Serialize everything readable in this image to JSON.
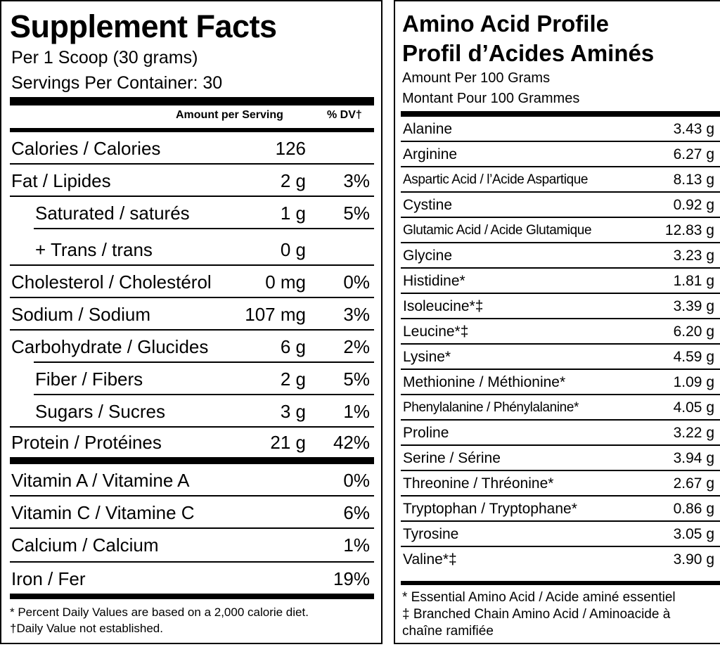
{
  "supplement": {
    "title": "Supplement Facts",
    "serving": "Per 1 Scoop (30 grams)",
    "servings_per_container": "Servings Per Container: 30",
    "col_amount": "Amount per Serving",
    "col_dv": "% DV†",
    "rows": [
      {
        "name": "Calories / Calories",
        "amount": "126",
        "dv": ""
      },
      {
        "name": "Fat / Lipides",
        "amount": "2 g",
        "dv": "3%"
      },
      {
        "name": "Saturated / saturés",
        "amount": "1 g",
        "dv": "5%"
      },
      {
        "name": "+ Trans / trans",
        "amount": "0 g",
        "dv": ""
      },
      {
        "name": "Cholesterol / Cholestérol",
        "amount": "0 mg",
        "dv": "0%"
      },
      {
        "name": "Sodium / Sodium",
        "amount": "107 mg",
        "dv": "3%"
      },
      {
        "name": "Carbohydrate / Glucides",
        "amount": "6 g",
        "dv": "2%"
      },
      {
        "name": "Fiber / Fibers",
        "amount": "2 g",
        "dv": "5%"
      },
      {
        "name": "Sugars / Sucres",
        "amount": "3 g",
        "dv": "1%"
      },
      {
        "name": "Protein / Protéines",
        "amount": "21 g",
        "dv": "42%"
      }
    ],
    "vitamins": [
      {
        "name": "Vitamin A / Vitamine A",
        "dv": "0%"
      },
      {
        "name": "Vitamin C / Vitamine C",
        "dv": "6%"
      },
      {
        "name": "Calcium / Calcium",
        "dv": "1%"
      },
      {
        "name": "Iron / Fer",
        "dv": "19%"
      }
    ],
    "footnote_1": "* Percent Daily Values are based on a 2,000 calorie diet.",
    "footnote_2": "†Daily Value not established."
  },
  "amino": {
    "title_en": "Amino Acid Profile",
    "title_fr": "Profil d’Acides Aminés",
    "amount_en": "Amount Per 100 Grams",
    "amount_fr": "Montant Pour 100 Grammes",
    "rows": [
      {
        "name": "Alanine",
        "value": "3.43 g"
      },
      {
        "name": "Arginine",
        "value": "6.27 g"
      },
      {
        "name": "Aspartic Acid / l’Acide Aspartique",
        "value": "8.13 g"
      },
      {
        "name": "Cystine",
        "value": "0.92 g"
      },
      {
        "name": "Glutamic Acid / Acide Glutamique",
        "value": "12.83 g"
      },
      {
        "name": "Glycine",
        "value": "3.23 g"
      },
      {
        "name": "Histidine*",
        "value": "1.81 g"
      },
      {
        "name": "Isoleucine*‡",
        "value": "3.39 g"
      },
      {
        "name": "Leucine*‡",
        "value": "6.20 g"
      },
      {
        "name": "Lysine*",
        "value": "4.59 g"
      },
      {
        "name": "Methionine / Méthionine*",
        "value": "1.09 g"
      },
      {
        "name": "Phenylalanine / Phénylalanine*",
        "value": "4.05 g"
      },
      {
        "name": "Proline",
        "value": "3.22 g"
      },
      {
        "name": "Serine / Sérine",
        "value": "3.94 g"
      },
      {
        "name": "Threonine / Thréonine*",
        "value": "2.67 g"
      },
      {
        "name": "Tryptophan / Tryptophane*",
        "value": "0.86 g"
      },
      {
        "name": "Tyrosine",
        "value": "3.05 g"
      },
      {
        "name": "Valine*‡",
        "value": "3.90 g"
      }
    ],
    "footnote_1": "* Essential Amino Acid / Acide aminé essentiel",
    "footnote_2": "‡ Branched Chain Amino Acid / Aminoacide à",
    "footnote_3": "chaîne ramifiée"
  }
}
